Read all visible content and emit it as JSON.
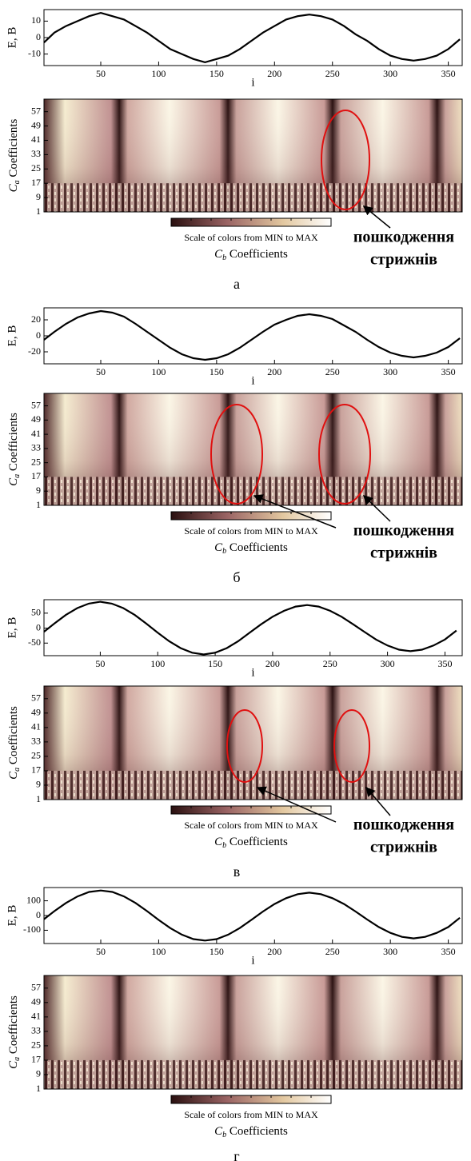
{
  "chart_data": [
    {
      "type": "line",
      "ylabel": "E, B",
      "xlabel": "i",
      "xlim": [
        1,
        362
      ],
      "ylim": [
        -17,
        17
      ],
      "xticks": [
        50,
        100,
        150,
        200,
        250,
        300,
        350
      ],
      "yticks": [
        -10,
        0,
        10
      ],
      "color": "#000000",
      "x": [
        0,
        10,
        20,
        30,
        40,
        50,
        60,
        70,
        80,
        90,
        100,
        110,
        120,
        130,
        140,
        150,
        160,
        170,
        180,
        190,
        200,
        210,
        220,
        230,
        240,
        250,
        260,
        270,
        280,
        290,
        300,
        310,
        320,
        330,
        340,
        350,
        360
      ],
      "values": [
        -3,
        3,
        7,
        10,
        13,
        15,
        13,
        11,
        7,
        3,
        -2,
        -7,
        -10,
        -13,
        -15,
        -13,
        -11,
        -7,
        -2,
        3,
        7,
        11,
        13,
        14,
        13,
        11,
        7,
        2,
        -2,
        -7,
        -11,
        -13,
        -14,
        -13,
        -11,
        -7,
        -1
      ]
    },
    {
      "type": "heatmap",
      "ylabel": {
        "symbol": "C",
        "sub": "a",
        "text": "Coefficients"
      },
      "ylim": [
        1,
        64
      ],
      "yticks": [
        1,
        9,
        17,
        25,
        33,
        41,
        49,
        57
      ],
      "colorbar_label": "Scale of colors from MIN to MAX",
      "colorbar_title": {
        "symbol": "C",
        "sub": "b",
        "text": "Coefficients"
      },
      "annotation": [
        "пошкодження",
        "стрижнів"
      ],
      "caption": "а"
    },
    {
      "type": "line",
      "ylabel": "E, B",
      "xlabel": "i",
      "xlim": [
        1,
        362
      ],
      "ylim": [
        -35,
        35
      ],
      "xticks": [
        50,
        100,
        150,
        200,
        250,
        300,
        350
      ],
      "yticks": [
        -20,
        0,
        20
      ],
      "color": "#000000",
      "x": [
        0,
        10,
        20,
        30,
        40,
        50,
        60,
        70,
        80,
        90,
        100,
        110,
        120,
        130,
        140,
        150,
        160,
        170,
        180,
        190,
        200,
        210,
        220,
        230,
        240,
        250,
        260,
        270,
        280,
        290,
        300,
        310,
        320,
        330,
        340,
        350,
        360
      ],
      "values": [
        -5,
        5,
        15,
        23,
        28,
        31,
        29,
        24,
        15,
        5,
        -5,
        -15,
        -23,
        -28,
        -30,
        -28,
        -23,
        -15,
        -5,
        5,
        14,
        20,
        25,
        27,
        25,
        21,
        13,
        5,
        -5,
        -14,
        -21,
        -25,
        -27,
        -25,
        -21,
        -14,
        -3
      ]
    },
    {
      "type": "heatmap",
      "ylabel": {
        "symbol": "C",
        "sub": "a",
        "text": "Coefficients"
      },
      "ylim": [
        1,
        64
      ],
      "yticks": [
        1,
        9,
        17,
        25,
        33,
        41,
        49,
        57
      ],
      "colorbar_label": "Scale of colors from MIN to MAX",
      "colorbar_title": {
        "symbol": "C",
        "sub": "b",
        "text": "Coefficients"
      },
      "annotation": [
        "пошкодження",
        "стрижнів"
      ],
      "caption": "б"
    },
    {
      "type": "line",
      "ylabel": "E, B",
      "xlabel": "i",
      "xlim": [
        1,
        365
      ],
      "ylim": [
        -92,
        95
      ],
      "xticks": [
        50,
        100,
        150,
        200,
        250,
        300,
        350
      ],
      "yticks": [
        -50,
        0,
        50
      ],
      "color": "#000000",
      "x": [
        0,
        10,
        20,
        30,
        40,
        50,
        60,
        70,
        80,
        90,
        100,
        110,
        120,
        130,
        140,
        150,
        160,
        170,
        180,
        190,
        200,
        210,
        220,
        230,
        240,
        250,
        260,
        270,
        280,
        290,
        300,
        310,
        320,
        330,
        340,
        350,
        360
      ],
      "values": [
        -12,
        15,
        44,
        67,
        82,
        88,
        82,
        67,
        44,
        15,
        -15,
        -44,
        -67,
        -82,
        -88,
        -82,
        -67,
        -44,
        -15,
        13,
        38,
        58,
        72,
        77,
        72,
        58,
        38,
        13,
        -13,
        -38,
        -58,
        -72,
        -77,
        -72,
        -58,
        -38,
        -8
      ]
    },
    {
      "type": "heatmap",
      "ylabel": {
        "symbol": "C",
        "sub": "a",
        "text": "Coefficients"
      },
      "ylim": [
        1,
        64
      ],
      "yticks": [
        1,
        9,
        17,
        25,
        33,
        41,
        49,
        57
      ],
      "colorbar_label": "Scale of colors from MIN to MAX",
      "colorbar_title": {
        "symbol": "C",
        "sub": "b",
        "text": "Coefficients"
      },
      "annotation": [
        "пошкодження",
        "стрижнів"
      ],
      "caption": "в"
    },
    {
      "type": "line",
      "ylabel": "E, B",
      "xlabel": "i",
      "xlim": [
        1,
        362
      ],
      "ylim": [
        -190,
        190
      ],
      "xticks": [
        50,
        100,
        150,
        200,
        250,
        300,
        350
      ],
      "yticks": [
        -100,
        0,
        100
      ],
      "color": "#000000",
      "x": [
        0,
        10,
        20,
        30,
        40,
        50,
        60,
        70,
        80,
        90,
        100,
        110,
        120,
        130,
        140,
        150,
        160,
        170,
        180,
        190,
        200,
        210,
        220,
        230,
        240,
        250,
        260,
        270,
        280,
        290,
        300,
        310,
        320,
        330,
        340,
        350,
        360
      ],
      "values": [
        -25,
        30,
        85,
        130,
        160,
        170,
        160,
        130,
        85,
        30,
        -30,
        -85,
        -130,
        -160,
        -170,
        -160,
        -130,
        -85,
        -30,
        27,
        78,
        118,
        145,
        155,
        145,
        118,
        78,
        27,
        -27,
        -78,
        -118,
        -145,
        -155,
        -145,
        -118,
        -78,
        -15
      ]
    },
    {
      "type": "heatmap",
      "ylabel": {
        "symbol": "C",
        "sub": "a",
        "text": "Coefficients"
      },
      "ylim": [
        1,
        64
      ],
      "yticks": [
        1,
        9,
        17,
        25,
        33,
        41,
        49,
        57
      ],
      "colorbar_label": "Scale of colors from MIN to MAX",
      "colorbar_title": {
        "symbol": "C",
        "sub": "b",
        "text": "Coefficients"
      },
      "caption": "г"
    }
  ]
}
